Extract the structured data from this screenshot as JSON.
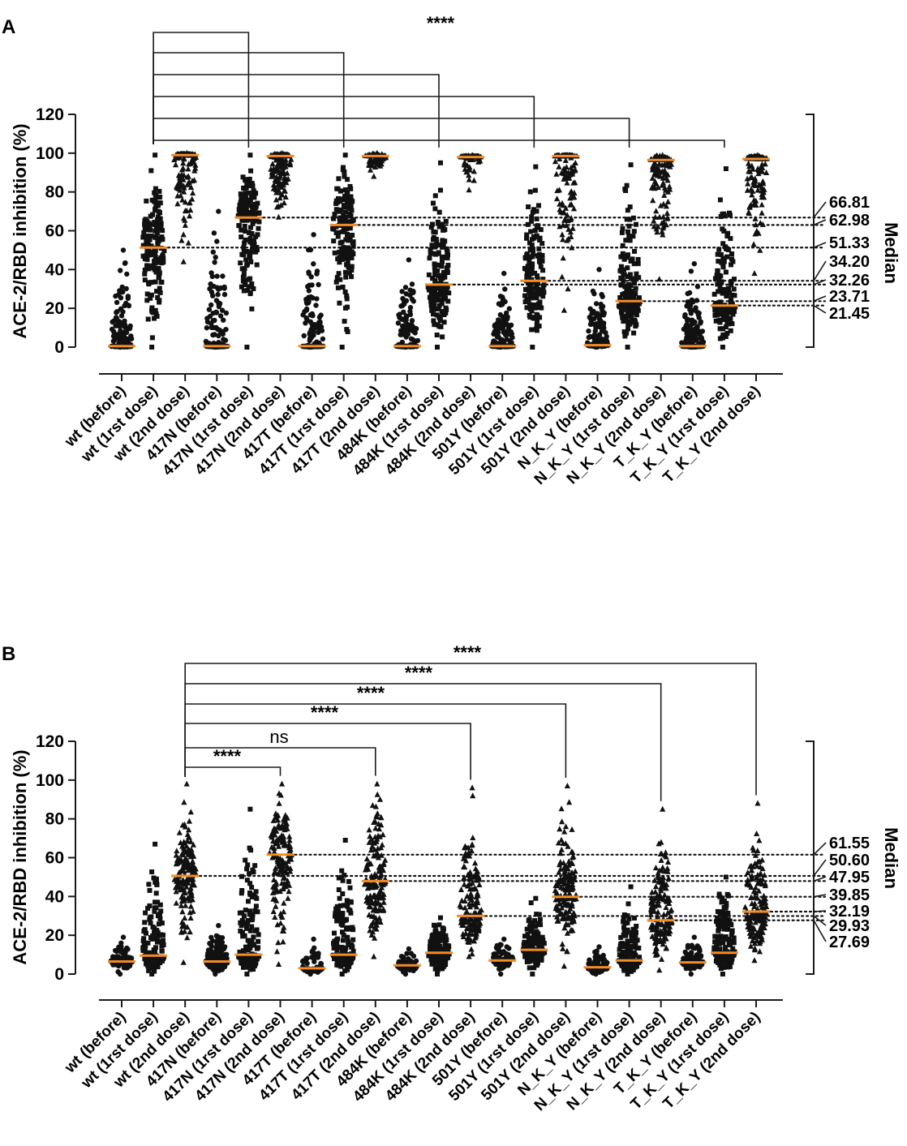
{
  "chart_data": [
    {
      "panel": "A",
      "type": "scatter",
      "subtype": "dot-plot with median lines",
      "ylabel": "ACE-2/RBD inhibition (%)",
      "ylim": [
        0,
        120
      ],
      "yticks": [
        "0",
        "20",
        "40",
        "60",
        "80",
        "100",
        "120"
      ],
      "categories": [
        "wt (before)",
        "wt (1rst dose)",
        "wt (2nd dose)",
        "417N (before)",
        "417N (1rst dose)",
        "417N (2nd dose)",
        "417T (before)",
        "417T (1rst dose)",
        "417T (2nd dose)",
        "484K (before)",
        "484K (1rst dose)",
        "484K (2nd dose)",
        "501Y (before)",
        "501Y (1rst dose)",
        "501Y (2nd dose)",
        "N_K_Y (before)",
        "N_K_Y (1rst dose)",
        "N_K_Y (2nd dose)",
        "T_K_Y (before)",
        "T_K_Y (1rst dose)",
        "T_K_Y (2nd dose)"
      ],
      "medians": [
        0.5,
        51.33,
        99,
        0.5,
        66.81,
        98.5,
        0.5,
        62.98,
        98.5,
        0.5,
        32.26,
        98,
        0.5,
        34.2,
        98.5,
        1,
        23.71,
        96.5,
        0.5,
        21.45,
        97
      ],
      "spread": [
        [
          0,
          50
        ],
        [
          0,
          99
        ],
        [
          44,
          100
        ],
        [
          0,
          70
        ],
        [
          0,
          99
        ],
        [
          67,
          100
        ],
        [
          0,
          58
        ],
        [
          0,
          99
        ],
        [
          88,
          100
        ],
        [
          0,
          45
        ],
        [
          0,
          95
        ],
        [
          81,
          99
        ],
        [
          0,
          38
        ],
        [
          0,
          93
        ],
        [
          19,
          99
        ],
        [
          0,
          40
        ],
        [
          0,
          94
        ],
        [
          35,
          99
        ],
        [
          0,
          43
        ],
        [
          0,
          92
        ],
        [
          38,
          99
        ]
      ],
      "median_labels": [
        "66.81",
        "62.98",
        "51.33",
        "34.20",
        "32.26",
        "23.71",
        "21.45"
      ],
      "median_axis_title": "Median",
      "comparisons": [
        {
          "from": "wt (1rst dose)",
          "to": "417N (1rst dose)",
          "label": ""
        },
        {
          "from": "wt (1rst dose)",
          "to": "417T (1rst dose)",
          "label": ""
        },
        {
          "from": "wt (1rst dose)",
          "to": "484K (1rst dose)",
          "label": ""
        },
        {
          "from": "wt (1rst dose)",
          "to": "501Y (1rst dose)",
          "label": ""
        },
        {
          "from": "wt (1rst dose)",
          "to": "N_K_Y (1rst dose)",
          "label": ""
        },
        {
          "from": "wt (1rst dose)",
          "to": "T_K_Y (1rst dose)",
          "label": "****"
        }
      ]
    },
    {
      "panel": "B",
      "type": "scatter",
      "subtype": "dot-plot with median lines",
      "ylabel": "ACE-2/RBD inhibition (%)",
      "ylim": [
        0,
        120
      ],
      "yticks": [
        "0",
        "20",
        "40",
        "60",
        "80",
        "100",
        "120"
      ],
      "categories": [
        "wt (before)",
        "wt (1rst dose)",
        "wt (2nd dose)",
        "417N (before)",
        "417N (1rst dose)",
        "417N (2nd dose)",
        "417T (before)",
        "417T (1rst dose)",
        "417T (2nd dose)",
        "484K (before)",
        "484K (1rst dose)",
        "484K (2nd dose)",
        "501Y (before)",
        "501Y (1rst dose)",
        "501Y (2nd dose)",
        "N_K_Y (before)",
        "N_K_Y (1rst dose)",
        "N_K_Y (2nd dose)",
        "T_K_Y (before)",
        "T_K_Y (1rst dose)",
        "T_K_Y (2nd dose)"
      ],
      "medians": [
        6.5,
        9.5,
        50.6,
        6.5,
        10,
        61.55,
        3,
        10,
        47.95,
        4.5,
        11,
        29.93,
        7,
        12.5,
        39.85,
        3.5,
        7,
        27.69,
        6,
        11,
        32.19
      ],
      "spread": [
        [
          0,
          19
        ],
        [
          0,
          67
        ],
        [
          6,
          98
        ],
        [
          0,
          25
        ],
        [
          0,
          85
        ],
        [
          5,
          98
        ],
        [
          0,
          18
        ],
        [
          0,
          69
        ],
        [
          9,
          98
        ],
        [
          0,
          13
        ],
        [
          0,
          29
        ],
        [
          9,
          96
        ],
        [
          0,
          18
        ],
        [
          0,
          39
        ],
        [
          4,
          97
        ],
        [
          0,
          14
        ],
        [
          0,
          45
        ],
        [
          2,
          85
        ],
        [
          0,
          19
        ],
        [
          0,
          50
        ],
        [
          7,
          88
        ]
      ],
      "median_labels": [
        "61.55",
        "50.60",
        "47.95",
        "39.85",
        "32.19",
        "29.93",
        "27.69"
      ],
      "median_axis_title": "Median",
      "comparisons": [
        {
          "from": "wt (2nd dose)",
          "to": "417N (2nd dose)",
          "label": "****"
        },
        {
          "from": "wt (2nd dose)",
          "to": "417T (2nd dose)",
          "label": "ns"
        },
        {
          "from": "wt (2nd dose)",
          "to": "484K (2nd dose)",
          "label": "****"
        },
        {
          "from": "wt (2nd dose)",
          "to": "501Y (2nd dose)",
          "label": "****"
        },
        {
          "from": "wt (2nd dose)",
          "to": "N_K_Y (2nd dose)",
          "label": "****"
        },
        {
          "from": "wt (2nd dose)",
          "to": "T_K_Y (2nd dose)",
          "label": "****"
        }
      ]
    }
  ],
  "colors": {
    "median": "#f28c28",
    "points": "#111111",
    "axis": "#1a1a1a"
  }
}
